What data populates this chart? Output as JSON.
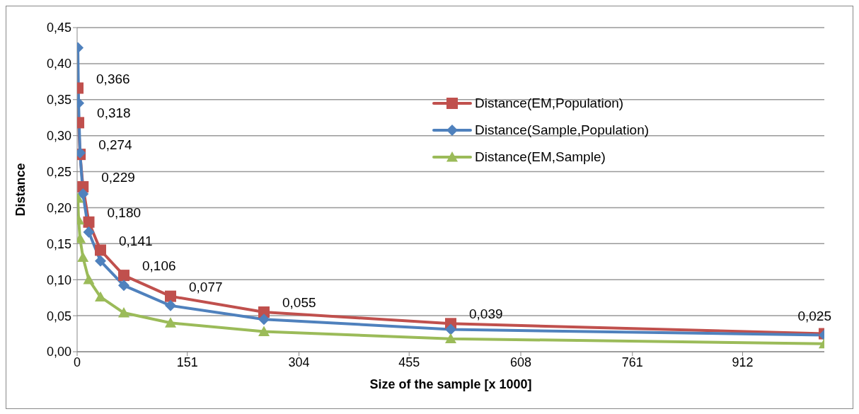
{
  "chart_data": {
    "type": "line",
    "xlabel": "Size of the sample [x 1000]",
    "ylabel": "Distance",
    "x": [
      1,
      2,
      4,
      8,
      16,
      32,
      64,
      128,
      256,
      512,
      1024
    ],
    "xlim": [
      0,
      1024
    ],
    "xticks": [
      0,
      151,
      304,
      455,
      608,
      761,
      912
    ],
    "ylim": [
      0,
      0.45
    ],
    "yticks": [
      {
        "value": 0,
        "label": "0,00"
      },
      {
        "value": 0.05,
        "label": "0,05"
      },
      {
        "value": 0.1,
        "label": "0,10"
      },
      {
        "value": 0.15,
        "label": "0,15"
      },
      {
        "value": 0.2,
        "label": "0,20"
      },
      {
        "value": 0.25,
        "label": "0,25"
      },
      {
        "value": 0.3,
        "label": "0,30"
      },
      {
        "value": 0.35,
        "label": "0,35"
      },
      {
        "value": 0.4,
        "label": "0,40"
      },
      {
        "value": 0.45,
        "label": "0,45"
      }
    ],
    "grid": "y",
    "legend": "right",
    "line_style": "solid",
    "series": [
      {
        "name": "Distance(EM,Population)",
        "color": "#c0504d",
        "marker": "square",
        "values": [
          0.366,
          0.318,
          0.274,
          0.229,
          0.18,
          0.141,
          0.106,
          0.077,
          0.055,
          0.039,
          0.025
        ],
        "value_labels": [
          "0,366",
          "0,318",
          "0,274",
          "0,229",
          "0,180",
          "0,141",
          "0,106",
          "0,077",
          "0,055",
          "0,039",
          "0,025"
        ]
      },
      {
        "name": "Distance(Sample,Population)",
        "color": "#4f81bd",
        "marker": "diamond",
        "values": [
          0.422,
          0.345,
          0.276,
          0.219,
          0.166,
          0.126,
          0.092,
          0.064,
          0.045,
          0.031,
          0.023
        ]
      },
      {
        "name": "Distance(EM,Sample)",
        "color": "#9bbb59",
        "marker": "triangle",
        "values": [
          0.213,
          0.183,
          0.157,
          0.131,
          0.1,
          0.076,
          0.054,
          0.04,
          0.028,
          0.018,
          0.011
        ]
      }
    ]
  }
}
